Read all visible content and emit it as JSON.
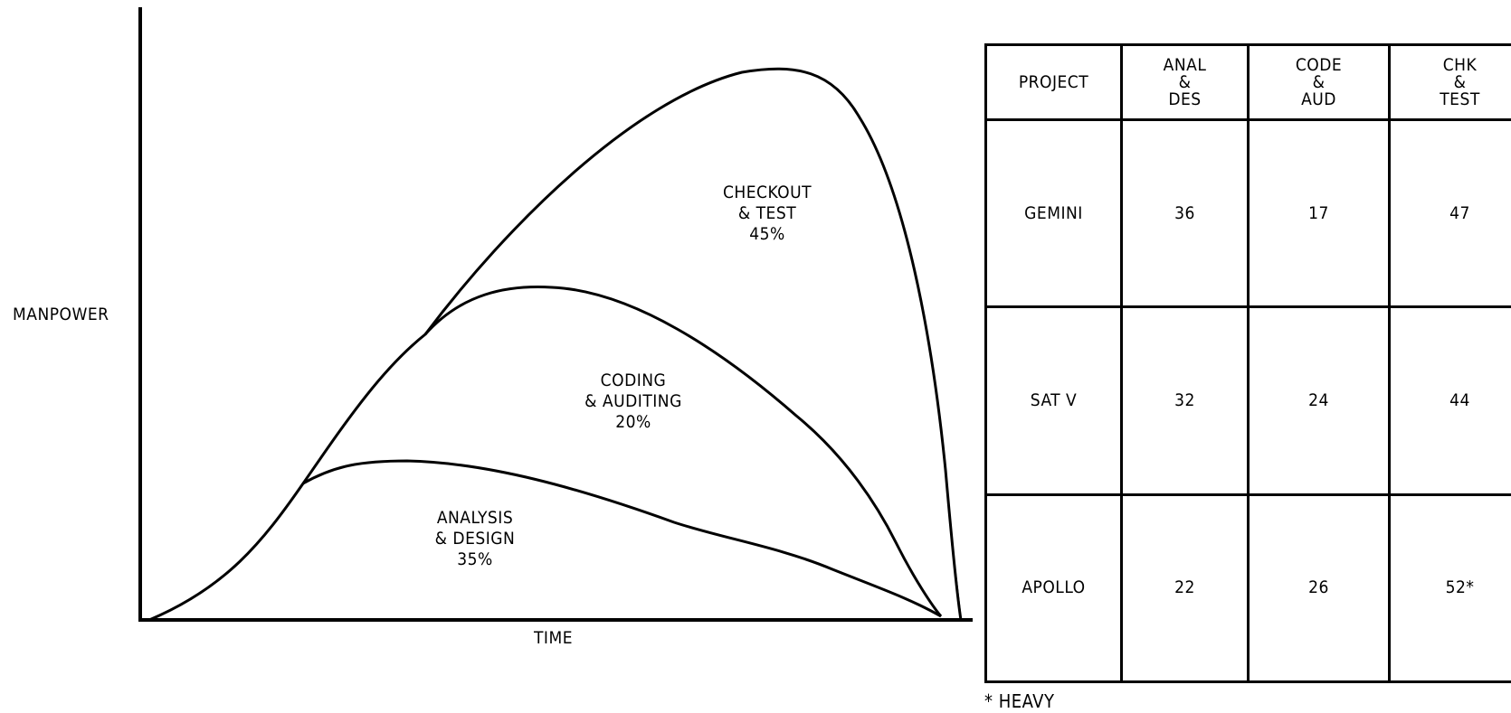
{
  "chart_data": {
    "type": "area",
    "xlabel": "TIME",
    "ylabel": "MANPOWER",
    "phases": [
      {
        "name": "ANALYSIS & DESIGN",
        "label_lines": [
          "ANALYSIS",
          "& DESIGN",
          "35%"
        ],
        "percent": 35
      },
      {
        "name": "CODING & AUDITING",
        "label_lines": [
          "CODING",
          "& AUDITING",
          "20%"
        ],
        "percent": 20
      },
      {
        "name": "CHECKOUT & TEST",
        "label_lines": [
          "CHECKOUT",
          "& TEST",
          "45%"
        ],
        "percent": 45
      }
    ]
  },
  "table": {
    "headers": [
      [
        "PROJECT"
      ],
      [
        "ANAL",
        "&",
        "DES"
      ],
      [
        "CODE",
        "&",
        "AUD"
      ],
      [
        "CHK",
        "&",
        "TEST"
      ]
    ],
    "rows": [
      {
        "project": "GEMINI",
        "anal_des": "36",
        "code_aud": "17",
        "chk_test": "47"
      },
      {
        "project": "SAT V",
        "anal_des": "32",
        "code_aud": "24",
        "chk_test": "44"
      },
      {
        "project": "APOLLO",
        "anal_des": "22",
        "code_aud": "26",
        "chk_test": "52*"
      }
    ]
  },
  "footnote": "* HEAVY"
}
